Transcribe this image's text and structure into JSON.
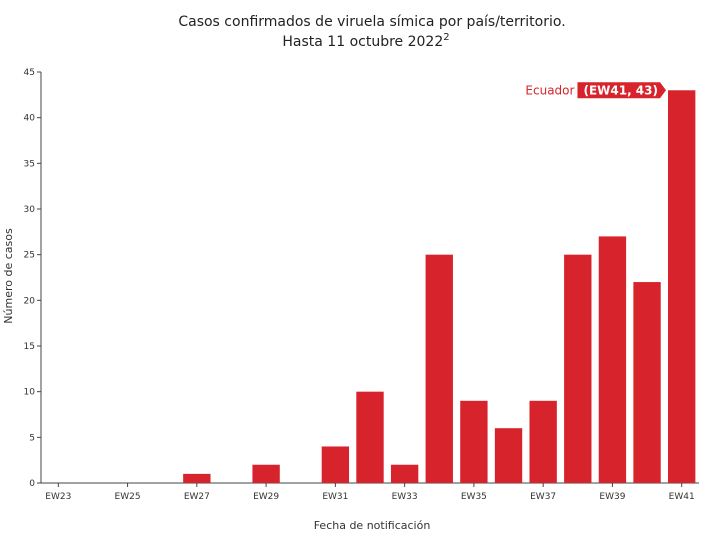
{
  "chart_data": {
    "type": "bar",
    "title_line1": "Casos confirmados de viruela símica por país/territorio.",
    "title_line2": "Hasta 11 octubre 2022",
    "title_superscript": "2",
    "xlabel": "Fecha de notificación",
    "ylabel": "Número de casos",
    "categories": [
      "EW23",
      "EW24",
      "EW25",
      "EW26",
      "EW27",
      "EW28",
      "EW29",
      "EW30",
      "EW31",
      "EW32",
      "EW33",
      "EW34",
      "EW35",
      "EW36",
      "EW37",
      "EW38",
      "EW39",
      "EW40",
      "EW41"
    ],
    "x_tick_labels": [
      "EW23",
      "EW25",
      "EW27",
      "EW29",
      "EW31",
      "EW33",
      "EW35",
      "EW37",
      "EW39",
      "EW41"
    ],
    "y_ticks": [
      0,
      5,
      10,
      15,
      20,
      25,
      30,
      35,
      40,
      45
    ],
    "ylim": [
      0,
      45
    ],
    "series": [
      {
        "name": "Ecuador",
        "color": "#d7232b",
        "values": [
          0,
          0,
          0,
          0,
          1,
          0,
          2,
          0,
          4,
          10,
          2,
          25,
          9,
          6,
          9,
          25,
          27,
          22,
          43
        ]
      }
    ],
    "hover": {
      "series_name": "Ecuador",
      "value_text": "(EW41, 43)"
    },
    "grid": false
  }
}
